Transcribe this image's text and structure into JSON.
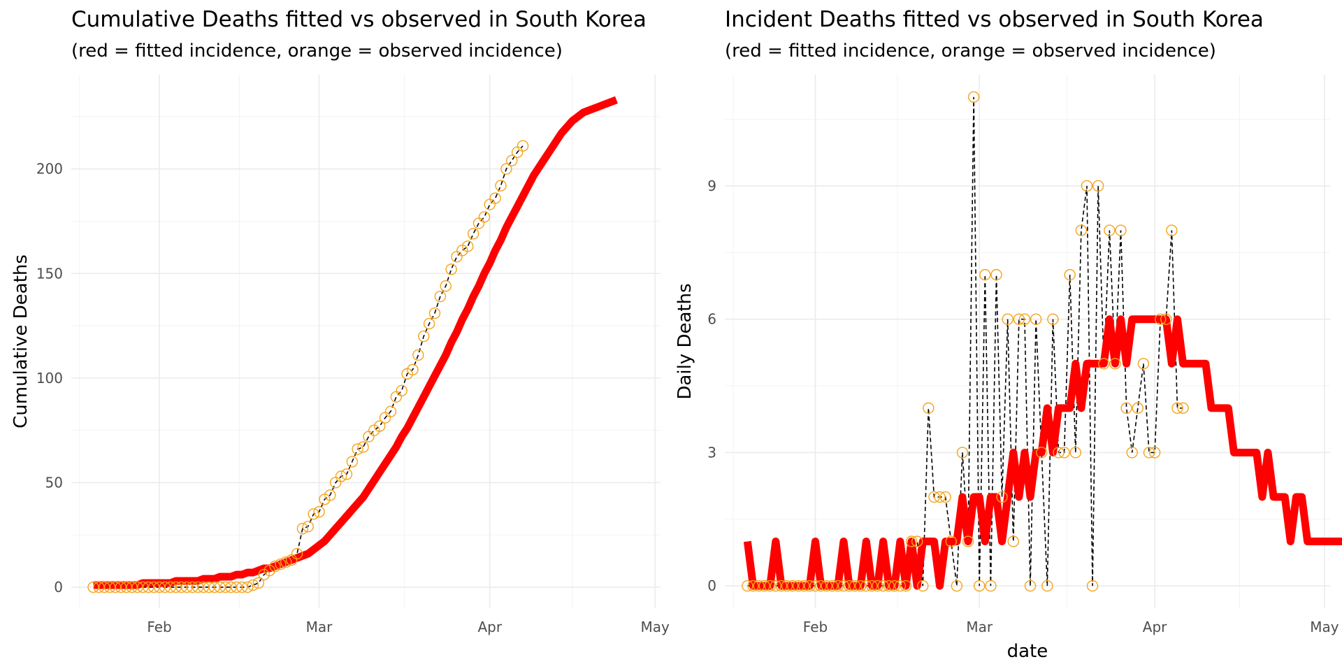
{
  "chart_data": [
    {
      "type": "line",
      "title": "Cumulative Deaths fitted vs observed in South Korea",
      "subtitle": "(red = fitted incidence, orange = observed incidence)",
      "xlabel": "",
      "ylabel": "Cumulative Deaths",
      "x_type": "date",
      "x_ticks": [
        "2020-02-01",
        "2020-03-01",
        "2020-04-01",
        "2020-05-01"
      ],
      "x_tick_labels": [
        "Feb",
        "Mar",
        "Apr",
        "May"
      ],
      "xlim": [
        "2020-01-16",
        "2020-05-02"
      ],
      "y_ticks": [
        0,
        50,
        100,
        150,
        200
      ],
      "ylim": [
        -10,
        245
      ],
      "grid": true,
      "colors": {
        "fitted": "#ff0000",
        "observed": "#f5a31a",
        "observed_line": "#000000"
      },
      "start_date": "2020-01-20",
      "series": [
        {
          "name": "fitted",
          "values": [
            1,
            1,
            1,
            1,
            1,
            1,
            1,
            1,
            1,
            2,
            2,
            2,
            2,
            2,
            2,
            3,
            3,
            3,
            3,
            3,
            4,
            4,
            4,
            5,
            5,
            5,
            6,
            6,
            7,
            7,
            8,
            9,
            9,
            10,
            11,
            12,
            13,
            14,
            15,
            16,
            18,
            20,
            22,
            25,
            28,
            31,
            34,
            37,
            40,
            43,
            47,
            51,
            55,
            59,
            63,
            67,
            72,
            76,
            81,
            86,
            91,
            96,
            101,
            106,
            111,
            117,
            122,
            128,
            133,
            139,
            144,
            150,
            155,
            161,
            166,
            172,
            177,
            182,
            187,
            192,
            197,
            201,
            205,
            209,
            213,
            217,
            220,
            223,
            225,
            227,
            228,
            229,
            230,
            231,
            232,
            233
          ]
        },
        {
          "name": "observed",
          "values": [
            0,
            0,
            0,
            0,
            0,
            0,
            0,
            0,
            0,
            0,
            0,
            0,
            0,
            0,
            0,
            0,
            0,
            0,
            0,
            0,
            0,
            0,
            0,
            0,
            0,
            0,
            0,
            0,
            0,
            1,
            2,
            6,
            8,
            10,
            11,
            12,
            13,
            16,
            28,
            29,
            35,
            36,
            42,
            44,
            50,
            53,
            54,
            60,
            66,
            67,
            72,
            75,
            77,
            81,
            84,
            91,
            94,
            102,
            104,
            111,
            120,
            126,
            131,
            139,
            144,
            152,
            158,
            161,
            163,
            169,
            174,
            177,
            183,
            186,
            192,
            200,
            204,
            208,
            211
          ]
        }
      ]
    },
    {
      "type": "line",
      "title": "Incident Deaths fitted vs observed in South Korea",
      "subtitle": "(red = fitted incidence, orange = observed incidence)",
      "xlabel": "date",
      "ylabel": "Daily Deaths",
      "x_type": "date",
      "x_ticks": [
        "2020-02-01",
        "2020-03-01",
        "2020-04-01",
        "2020-05-01"
      ],
      "x_tick_labels": [
        "Feb",
        "Mar",
        "Apr",
        "May"
      ],
      "xlim": [
        "2020-01-16",
        "2020-05-02"
      ],
      "y_ticks": [
        0,
        3,
        6,
        9
      ],
      "ylim": [
        -0.5,
        11.5
      ],
      "grid": true,
      "colors": {
        "fitted": "#ff0000",
        "observed": "#f5a31a",
        "observed_line": "#000000"
      },
      "start_date": "2020-01-20",
      "series": [
        {
          "name": "fitted",
          "values": [
            1,
            0,
            0,
            0,
            0,
            1,
            0,
            0,
            0,
            0,
            0,
            0,
            1,
            0,
            0,
            0,
            0,
            1,
            0,
            0,
            0,
            1,
            0,
            0,
            1,
            0,
            0,
            1,
            0,
            1,
            0,
            1,
            1,
            1,
            0,
            1,
            1,
            1,
            2,
            1,
            2,
            2,
            1,
            2,
            2,
            1,
            2,
            3,
            2,
            3,
            2,
            3,
            3,
            4,
            3,
            4,
            4,
            4,
            5,
            4,
            5,
            5,
            5,
            5,
            6,
            5,
            6,
            5,
            6,
            6,
            6,
            6,
            6,
            6,
            6,
            5,
            6,
            5,
            5,
            5,
            5,
            5,
            4,
            4,
            4,
            4,
            3,
            3,
            3,
            3,
            3,
            2,
            3,
            2,
            2,
            2,
            1,
            2,
            2,
            1,
            1,
            1,
            1,
            1,
            1,
            1,
            1,
            1
          ]
        },
        {
          "name": "observed",
          "values": [
            0,
            0,
            0,
            0,
            0,
            0,
            0,
            0,
            0,
            0,
            0,
            0,
            0,
            0,
            0,
            0,
            0,
            0,
            0,
            0,
            0,
            0,
            0,
            0,
            0,
            0,
            0,
            0,
            0,
            1,
            1,
            0,
            4,
            2,
            2,
            2,
            1,
            0,
            3,
            1,
            11,
            0,
            7,
            0,
            7,
            2,
            6,
            1,
            6,
            6,
            0,
            6,
            3,
            0,
            6,
            3,
            3,
            7,
            3,
            8,
            9,
            0,
            9,
            5,
            8,
            5,
            8,
            4,
            3,
            4,
            5,
            3,
            3,
            6,
            6,
            8,
            4,
            4
          ]
        }
      ]
    }
  ]
}
